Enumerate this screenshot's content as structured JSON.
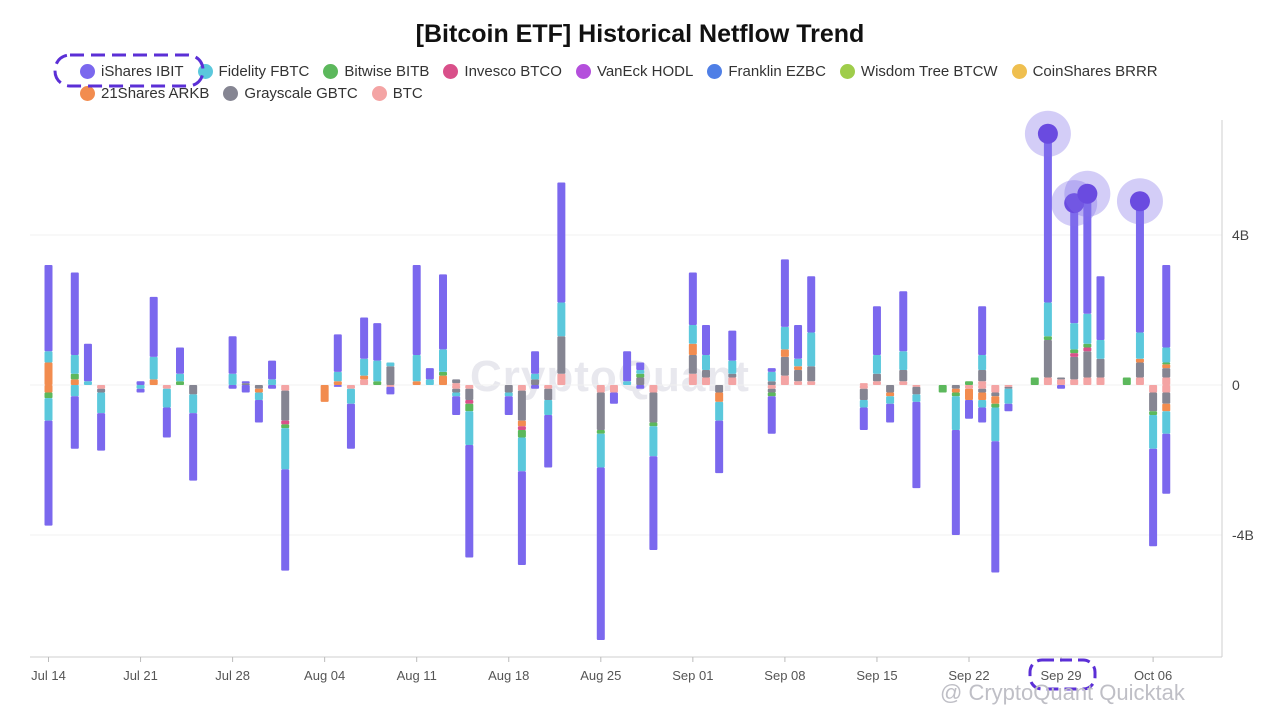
{
  "chart_data": {
    "type": "bar",
    "stacked": true,
    "title": "[Bitcoin ETF] Historical Netflow Trend",
    "y_ticks": [
      "4B",
      "0",
      "-4B"
    ],
    "y_tick_values": [
      4,
      0,
      -4
    ],
    "ylim": [
      -7.3,
      7.2
    ],
    "y_unit": "billions",
    "x_tick_labels": [
      "Jul 14",
      "Jul 21",
      "Jul 28",
      "Aug 04",
      "Aug 11",
      "Aug 18",
      "Aug 25",
      "Sep 01",
      "Sep 08",
      "Sep 15",
      "Sep 22",
      "Sep 29",
      "Oct 06"
    ],
    "x_tick_day_index": [
      0,
      7,
      14,
      21,
      28,
      35,
      42,
      49,
      56,
      63,
      70,
      77,
      84
    ],
    "legend_position": "top",
    "series": [
      {
        "name": "iShares IBIT",
        "color": "#7b68ee"
      },
      {
        "name": "Fidelity FBTC",
        "color": "#5bc8dc"
      },
      {
        "name": "Bitwise BITB",
        "color": "#5cb85c"
      },
      {
        "name": "Invesco BTCO",
        "color": "#d9508a"
      },
      {
        "name": "VanEck HODL",
        "color": "#b44fdc"
      },
      {
        "name": "Franklin EZBC",
        "color": "#4f7fe6"
      },
      {
        "name": "Wisdom Tree BTCW",
        "color": "#9fcd4b"
      },
      {
        "name": "CoinShares BRRR",
        "color": "#efbf4f"
      },
      {
        "name": "21Shares ARKB",
        "color": "#f28c4f"
      },
      {
        "name": "Grayscale GBTC",
        "color": "#858592"
      },
      {
        "name": "BTC",
        "color": "#f4a4a4"
      }
    ],
    "days": [
      {
        "d": 0,
        "pos": [
          2.3,
          0.3,
          0,
          0,
          0,
          0,
          0,
          0,
          0.6,
          0,
          0
        ],
        "neg": [
          -2.8,
          -0.6,
          -0.15,
          0,
          0,
          0,
          0,
          0,
          -0.2,
          0,
          0
        ]
      },
      {
        "d": 2,
        "pos": [
          2.2,
          0.5,
          0.15,
          0,
          0,
          0,
          0,
          0,
          0.15,
          0,
          0
        ],
        "neg": [
          -1.4,
          -0.3,
          0,
          0,
          0,
          0,
          0,
          0,
          0,
          0,
          0
        ]
      },
      {
        "d": 3,
        "pos": [
          1.0,
          0.1,
          0,
          0,
          0,
          0,
          0,
          0,
          0,
          0,
          0
        ]
      },
      {
        "d": 4,
        "neg": [
          -1.0,
          -0.55,
          0,
          0,
          0,
          0,
          0,
          0,
          0,
          -0.1,
          -0.1
        ]
      },
      {
        "d": 7,
        "pos": [
          0.1,
          0,
          0,
          0,
          0,
          0,
          0,
          0,
          0,
          0,
          0
        ],
        "neg": [
          -0.1,
          -0.1,
          0,
          0,
          0,
          0,
          0,
          0,
          0,
          0,
          0
        ]
      },
      {
        "d": 8,
        "pos": [
          1.6,
          0.6,
          0,
          0,
          0,
          0,
          0,
          0,
          0.15,
          0,
          0
        ]
      },
      {
        "d": 9,
        "neg": [
          -0.8,
          -0.5,
          0,
          0,
          0,
          0,
          0,
          0,
          0,
          0,
          -0.1
        ]
      },
      {
        "d": 10,
        "pos": [
          0.7,
          0.2,
          0.1,
          0,
          0,
          0,
          0,
          0,
          0,
          0,
          0
        ]
      },
      {
        "d": 11,
        "neg": [
          -1.8,
          -0.5,
          0,
          0,
          0,
          0,
          0,
          0,
          0,
          -0.25,
          0
        ]
      },
      {
        "d": 14,
        "pos": [
          1.0,
          0.3,
          0,
          0,
          0,
          0,
          0,
          0,
          0,
          0,
          0
        ],
        "neg": [
          -0.1,
          0,
          0,
          0,
          0,
          0,
          0,
          0,
          0,
          0,
          0
        ]
      },
      {
        "d": 15,
        "pos": [
          0.05,
          0,
          0,
          0,
          0,
          0,
          0,
          0,
          0,
          0.05,
          0
        ],
        "neg": [
          -0.2,
          0,
          0,
          0,
          0,
          0,
          0,
          0,
          0,
          0,
          0
        ]
      },
      {
        "d": 16,
        "neg": [
          -0.6,
          -0.2,
          0,
          0,
          0,
          0,
          0,
          0,
          -0.1,
          -0.1,
          0
        ]
      },
      {
        "d": 17,
        "pos": [
          0.5,
          0.15,
          0,
          0,
          0,
          0,
          0,
          0,
          0,
          0,
          0
        ],
        "neg": [
          -0.1,
          0,
          0,
          0,
          0,
          0,
          0,
          0,
          0,
          0,
          0
        ]
      },
      {
        "d": 18,
        "neg": [
          -2.7,
          -1.1,
          -0.1,
          -0.1,
          0,
          0,
          0,
          0,
          0,
          -0.8,
          -0.15
        ]
      },
      {
        "d": 21,
        "neg": [
          0,
          0,
          0,
          0,
          0,
          0,
          0,
          0,
          -0.45,
          0,
          0
        ]
      },
      {
        "d": 22,
        "pos": [
          1.0,
          0.25,
          0,
          0,
          0,
          0,
          0,
          0,
          0.1,
          0,
          0
        ],
        "neg": [
          -0.05,
          0,
          0,
          0,
          0,
          0,
          0,
          0,
          0,
          0,
          0
        ]
      },
      {
        "d": 23,
        "neg": [
          -1.2,
          -0.4,
          0,
          0,
          0,
          0,
          0,
          0,
          0,
          0,
          -0.1
        ]
      },
      {
        "d": 24,
        "pos": [
          1.1,
          0.45,
          0,
          0,
          0,
          0,
          0,
          0,
          0.1,
          0,
          0.15
        ]
      },
      {
        "d": 25,
        "pos": [
          1.0,
          0.55,
          0.1,
          0,
          0,
          0,
          0,
          0,
          0,
          0,
          0
        ]
      },
      {
        "d": 26,
        "pos": [
          0,
          0.1,
          0,
          0,
          0,
          0,
          0,
          0,
          0,
          0.5,
          0
        ],
        "neg": [
          -0.2,
          0,
          0,
          0,
          0,
          0,
          0,
          0,
          0,
          0,
          -0.05
        ]
      },
      {
        "d": 28,
        "pos": [
          2.4,
          0.7,
          0,
          0,
          0,
          0,
          0,
          0,
          0.1,
          0,
          0
        ]
      },
      {
        "d": 29,
        "pos": [
          0.3,
          0.15,
          0,
          0,
          0,
          0,
          0,
          0,
          0,
          0,
          0
        ]
      },
      {
        "d": 30,
        "pos": [
          2.0,
          0.6,
          0.1,
          0,
          0,
          0,
          0,
          0,
          0.25,
          0,
          0
        ]
      },
      {
        "d": 31,
        "pos": [
          0,
          0,
          0,
          0,
          0,
          0,
          0,
          0,
          0,
          0.1,
          0.05
        ],
        "neg": [
          -0.5,
          -0.1,
          0,
          0,
          0,
          0,
          0,
          0,
          0,
          -0.1,
          -0.1
        ]
      },
      {
        "d": 32,
        "neg": [
          -3.0,
          -0.9,
          -0.2,
          -0.1,
          0,
          0,
          0,
          0,
          0,
          -0.3,
          -0.1
        ]
      },
      {
        "d": 35,
        "neg": [
          -0.5,
          -0.1,
          0,
          0,
          0,
          0,
          0,
          0,
          0,
          -0.2,
          0
        ]
      },
      {
        "d": 36,
        "neg": [
          -2.5,
          -0.9,
          -0.2,
          -0.1,
          0,
          0,
          0,
          0,
          -0.15,
          -0.8,
          -0.15
        ]
      },
      {
        "d": 37,
        "pos": [
          0.6,
          0.15,
          0,
          0,
          0,
          0,
          0,
          0,
          0,
          0.15,
          0
        ],
        "neg": [
          -0.1,
          0,
          0,
          0,
          0,
          0,
          0,
          0,
          0,
          0,
          0
        ]
      },
      {
        "d": 38,
        "neg": [
          -1.4,
          -0.4,
          0,
          0,
          0,
          0,
          0,
          0,
          0,
          -0.3,
          -0.1
        ]
      },
      {
        "d": 39,
        "pos": [
          3.2,
          0.9,
          0,
          0,
          0,
          0,
          0,
          0,
          0,
          1.0,
          0.3
        ]
      },
      {
        "d": 42,
        "neg": [
          -4.6,
          -0.9,
          -0.1,
          0,
          0,
          0,
          0,
          0,
          0,
          -1.0,
          -0.2
        ]
      },
      {
        "d": 43,
        "neg": [
          -0.3,
          0,
          0,
          0,
          0,
          0,
          0,
          0,
          0,
          0,
          -0.2
        ]
      },
      {
        "d": 44,
        "pos": [
          0.8,
          0.1,
          0,
          0,
          0,
          0,
          0,
          0,
          0,
          0,
          0
        ]
      },
      {
        "d": 45,
        "pos": [
          0.2,
          0.1,
          0.1,
          0,
          0,
          0,
          0,
          0,
          0,
          0.2,
          0
        ],
        "neg": [
          -0.1,
          0,
          0,
          0,
          0,
          0,
          0,
          0,
          0,
          0,
          0
        ]
      },
      {
        "d": 46,
        "neg": [
          -2.5,
          -0.8,
          -0.1,
          0,
          0,
          0,
          0,
          0,
          0,
          -0.8,
          -0.2
        ]
      },
      {
        "d": 49,
        "pos": [
          1.4,
          0.5,
          0,
          0,
          0,
          0,
          0,
          0,
          0.3,
          0.5,
          0.3
        ]
      },
      {
        "d": 50,
        "pos": [
          0.8,
          0.4,
          0,
          0,
          0,
          0,
          0,
          0,
          0,
          0.2,
          0.2
        ]
      },
      {
        "d": 51,
        "neg": [
          -1.4,
          -0.5,
          0,
          0,
          0,
          0,
          0,
          0,
          -0.25,
          -0.2,
          0
        ]
      },
      {
        "d": 52,
        "pos": [
          0.8,
          0.35,
          0,
          0,
          0,
          0,
          0,
          0,
          0,
          0.1,
          0.2
        ]
      },
      {
        "d": 55,
        "pos": [
          0.1,
          0.25,
          0,
          0,
          0,
          0,
          0,
          0,
          0,
          0.1,
          0
        ],
        "neg": [
          -1.0,
          0,
          -0.1,
          0,
          0,
          0,
          0,
          0,
          0,
          -0.1,
          -0.1
        ]
      },
      {
        "d": 56,
        "pos": [
          1.8,
          0.6,
          0,
          0,
          0,
          0,
          0,
          0,
          0.2,
          0.5,
          0.25
        ]
      },
      {
        "d": 57,
        "pos": [
          0.9,
          0.2,
          0,
          0,
          0,
          0,
          0,
          0,
          0.1,
          0.3,
          0.1
        ]
      },
      {
        "d": 58,
        "pos": [
          1.5,
          0.9,
          0,
          0,
          0,
          0,
          0,
          0,
          0,
          0.4,
          0.1
        ]
      },
      {
        "d": 62,
        "pos": [
          0,
          0,
          0,
          0,
          0,
          0,
          0,
          0,
          0,
          0,
          0.05
        ],
        "neg": [
          -0.6,
          -0.2,
          0,
          0,
          0,
          0,
          0,
          0,
          0,
          -0.3,
          -0.1
        ]
      },
      {
        "d": 63,
        "pos": [
          1.3,
          0.5,
          0,
          0,
          0,
          0,
          0,
          0,
          0,
          0.2,
          0.1
        ]
      },
      {
        "d": 64,
        "neg": [
          -0.5,
          -0.2,
          0,
          0,
          0,
          0,
          0,
          0,
          -0.1,
          -0.2,
          0
        ]
      },
      {
        "d": 65,
        "pos": [
          1.6,
          0.5,
          0,
          0,
          0,
          0,
          0,
          0,
          0,
          0.3,
          0.1
        ]
      },
      {
        "d": 66,
        "neg": [
          -2.3,
          -0.2,
          0,
          0,
          0,
          0,
          0,
          0,
          0,
          -0.2,
          -0.05
        ]
      },
      {
        "d": 68,
        "neg": [
          0,
          0,
          -0.2,
          0,
          0,
          0,
          0,
          0,
          0,
          0,
          0
        ]
      },
      {
        "d": 69,
        "neg": [
          -2.8,
          -0.9,
          -0.1,
          0,
          0,
          0,
          0,
          0,
          -0.1,
          -0.1,
          0
        ]
      },
      {
        "d": 70,
        "pos": [
          0,
          0,
          0.1,
          0,
          0,
          0,
          0,
          0,
          0,
          0,
          0
        ],
        "neg": [
          -0.5,
          0,
          0,
          0,
          0,
          0,
          0,
          0,
          -0.3,
          0,
          -0.1
        ]
      },
      {
        "d": 71,
        "pos": [
          1.3,
          0.4,
          0,
          0,
          0,
          0,
          0,
          0,
          0,
          0.3,
          0.1
        ],
        "neg": [
          -0.4,
          -0.2,
          0,
          0,
          0,
          0,
          0,
          0,
          -0.2,
          -0.1,
          -0.1
        ]
      },
      {
        "d": 72,
        "neg": [
          -3.5,
          -0.9,
          -0.1,
          0,
          0,
          0,
          0,
          0,
          -0.2,
          -0.1,
          -0.2
        ]
      },
      {
        "d": 73,
        "neg": [
          -0.2,
          -0.4,
          0,
          0,
          0,
          0,
          0,
          0,
          0,
          -0.05,
          -0.05
        ]
      },
      {
        "d": 75,
        "pos": [
          0,
          0,
          0.2,
          0,
          0,
          0,
          0,
          0,
          0,
          0,
          0
        ]
      },
      {
        "d": 76,
        "pos": [
          4.5,
          0.9,
          0.1,
          0,
          0,
          0,
          0,
          0,
          0,
          1.0,
          0.2
        ]
      },
      {
        "d": 77,
        "pos": [
          0,
          0,
          0,
          0,
          0,
          0,
          0,
          0,
          0,
          0.05,
          0.15
        ],
        "neg": [
          -0.1,
          0,
          0,
          0,
          0,
          0,
          0,
          0,
          0,
          0,
          0
        ]
      },
      {
        "d": 78,
        "pos": [
          3.2,
          0.7,
          0.1,
          0.1,
          0,
          0,
          0,
          0,
          0,
          0.6,
          0.15
        ]
      },
      {
        "d": 79,
        "pos": [
          3.2,
          0.8,
          0.1,
          0.1,
          0,
          0,
          0,
          0,
          0,
          0.7,
          0.2
        ]
      },
      {
        "d": 80,
        "pos": [
          1.7,
          0.5,
          0,
          0,
          0,
          0,
          0,
          0,
          0,
          0.5,
          0.2
        ]
      },
      {
        "d": 82,
        "pos": [
          0,
          0,
          0.2,
          0,
          0,
          0,
          0,
          0,
          0,
          0,
          0
        ]
      },
      {
        "d": 83,
        "pos": [
          3.5,
          0.7,
          0,
          0,
          0,
          0,
          0,
          0,
          0.1,
          0.4,
          0.2
        ]
      },
      {
        "d": 84,
        "neg": [
          -2.6,
          -0.9,
          -0.1,
          0,
          0,
          0,
          0,
          0,
          0,
          -0.5,
          -0.2
        ]
      },
      {
        "d": 85,
        "pos": [
          2.2,
          0.4,
          0.05,
          0,
          0,
          0,
          0,
          0,
          0.1,
          0.25,
          0.2
        ],
        "neg": [
          -1.6,
          -0.6,
          0,
          0,
          0,
          0,
          0,
          0,
          -0.2,
          -0.3,
          -0.2
        ]
      }
    ],
    "highlighted_peaks_day_index": [
      76,
      78,
      79,
      83
    ],
    "highlighted_legend_item": "iShares IBIT",
    "highlighted_x_tick": "Sep 29"
  },
  "watermark": "CryptoQuant",
  "credit_text": "@ CryptoQuant Quicktak"
}
